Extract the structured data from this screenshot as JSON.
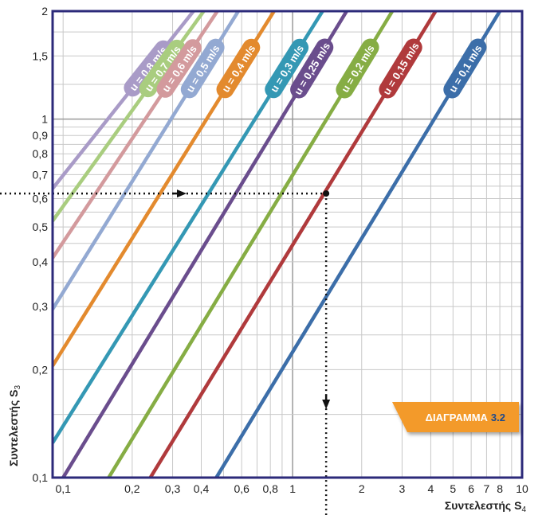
{
  "chart_data": {
    "type": "line",
    "x_scale": "log",
    "y_scale": "log",
    "xlim": [
      0.09,
      10
    ],
    "ylim": [
      0.1,
      2
    ],
    "x_ticks": [
      {
        "v": 0.1,
        "label": "0,1"
      },
      {
        "v": 0.2,
        "label": "0,2"
      },
      {
        "v": 0.3,
        "label": "0,3"
      },
      {
        "v": 0.4,
        "label": "0,4"
      },
      {
        "v": 0.6,
        "label": "0,6"
      },
      {
        "v": 0.8,
        "label": "0,8"
      },
      {
        "v": 1,
        "label": "1"
      },
      {
        "v": 2,
        "label": "2"
      },
      {
        "v": 3,
        "label": "3"
      },
      {
        "v": 4,
        "label": "4"
      },
      {
        "v": 5,
        "label": "5"
      },
      {
        "v": 6,
        "label": "6"
      },
      {
        "v": 7,
        "label": "7"
      },
      {
        "v": 8,
        "label": "8"
      },
      {
        "v": 10,
        "label": "10"
      }
    ],
    "y_ticks": [
      {
        "v": 0.1,
        "label": "0,1"
      },
      {
        "v": 0.2,
        "label": "0,2"
      },
      {
        "v": 0.3,
        "label": "0,3"
      },
      {
        "v": 0.4,
        "label": "0,4"
      },
      {
        "v": 0.5,
        "label": "0,5"
      },
      {
        "v": 0.6,
        "label": "0,6"
      },
      {
        "v": 0.7,
        "label": "0,7"
      },
      {
        "v": 0.8,
        "label": "0,8"
      },
      {
        "v": 0.9,
        "label": "0,9"
      },
      {
        "v": 1,
        "label": "1"
      },
      {
        "v": 1.5,
        "label": "1,5"
      },
      {
        "v": 2,
        "label": "2"
      }
    ],
    "xlabel": "Συντελεστής S",
    "xlabel_sub": "4",
    "ylabel": "Συντελεστής S",
    "ylabel_sub": "3",
    "grid": true,
    "series": [
      {
        "name": "u = 0,8 m/s",
        "color": "#a99bc7",
        "x": [
          0.09,
          0.37
        ],
        "y": [
          0.64,
          2
        ]
      },
      {
        "name": "u = 0,7 m/s",
        "color": "#a9cd7f",
        "x": [
          0.09,
          0.41
        ],
        "y": [
          0.52,
          2
        ]
      },
      {
        "name": "u = 0,6 m/s",
        "color": "#d39a9d",
        "x": [
          0.09,
          0.47
        ],
        "y": [
          0.41,
          2
        ]
      },
      {
        "name": "u = 0,5 m/s",
        "color": "#93a9d2",
        "x": [
          0.09,
          0.58
        ],
        "y": [
          0.295,
          2
        ]
      },
      {
        "name": "u = 0,4 m/s",
        "color": "#e38a2e",
        "x": [
          0.09,
          0.83
        ],
        "y": [
          0.205,
          2
        ]
      },
      {
        "name": "u = 0,3 m/s",
        "color": "#3498b4",
        "x": [
          0.09,
          1.35
        ],
        "y": [
          0.125,
          2
        ]
      },
      {
        "name": "u = 0,25 m/s",
        "color": "#6a4d8d",
        "x": [
          0.1,
          1.72
        ],
        "y": [
          0.1,
          2
        ]
      },
      {
        "name": "u = 0,2 m/s",
        "color": "#86ad44",
        "x": [
          0.158,
          2.72
        ],
        "y": [
          0.1,
          2
        ]
      },
      {
        "name": "u = 0,15 m/s",
        "color": "#b03a3c",
        "x": [
          0.24,
          4.2
        ],
        "y": [
          0.1,
          2
        ]
      },
      {
        "name": "u = 0,1 m/s",
        "color": "#3c6ea9",
        "x": [
          0.465,
          8.0
        ],
        "y": [
          0.1,
          2
        ]
      }
    ],
    "example_point": {
      "x": 1.4,
      "y": 0.62
    }
  },
  "badge": {
    "text": "ΔΙΑΓΡΑΜΜΑ",
    "number": "3.2",
    "bg": "#f39a2b",
    "number_color": "#1d4a8c"
  },
  "colors": {
    "frame": "#2c2a7a",
    "grid": "#c8c8c8",
    "grid_major": "#9a9a9a",
    "guide": "#111111"
  }
}
